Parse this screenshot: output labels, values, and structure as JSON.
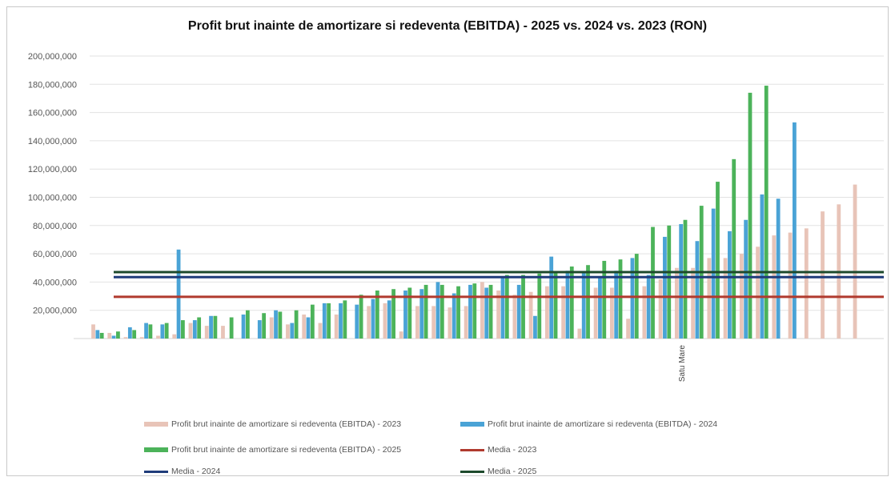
{
  "chart_data": {
    "type": "bar",
    "title": "Profit brut inainte de amortizare si redeventa (EBITDA) - 2025 vs. 2024 vs. 2023 (RON)",
    "xlabel": "",
    "ylabel": "",
    "ylim": [
      0,
      200000000
    ],
    "yticks": [
      "200,000,000",
      "180,000,000",
      "160,000,000",
      "140,000,000",
      "120,000,000",
      "100,000,000",
      "80,000,000",
      "60,000,000",
      "40,000,000",
      "20,000,000"
    ],
    "grid": true,
    "legend_position": "bottom",
    "categories": [
      "",
      "",
      "",
      "",
      "",
      "",
      "",
      "",
      "",
      "",
      "",
      "",
      "",
      "",
      "",
      "",
      "",
      "",
      "",
      "",
      "",
      "",
      "",
      "",
      "",
      "",
      "",
      "",
      "",
      "",
      "",
      "",
      "",
      "",
      "",
      "",
      "Satu Mare",
      "",
      "",
      "",
      "",
      "",
      "",
      "",
      "",
      "",
      "",
      "",
      ""
    ],
    "series": [
      {
        "name": "Profit brut inainte de amortizare si redeventa (EBITDA) - 2023",
        "kind": "bar",
        "color": "#e8c4b8",
        "values": [
          10000000,
          4000000,
          1000000,
          1000000,
          2000000,
          3000000,
          11000000,
          9000000,
          9000000,
          0,
          0,
          15000000,
          10000000,
          17000000,
          11000000,
          17000000,
          0,
          23000000,
          25000000,
          5000000,
          23000000,
          23000000,
          22000000,
          23000000,
          40000000,
          34000000,
          31000000,
          33000000,
          37000000,
          37000000,
          7000000,
          36000000,
          36000000,
          14000000,
          37000000,
          42000000,
          50000000,
          50000000,
          57000000,
          57000000,
          60000000,
          65000000,
          73000000,
          75000000,
          78000000,
          90000000,
          95000000,
          109000000,
          0
        ]
      },
      {
        "name": "Profit brut inainte de amortizare si redeventa (EBITDA) - 2024",
        "kind": "bar",
        "color": "#4aa3d6",
        "values": [
          6000000,
          2000000,
          8000000,
          11000000,
          10000000,
          63000000,
          13000000,
          16000000,
          0,
          17000000,
          13000000,
          20000000,
          11000000,
          15000000,
          25000000,
          25000000,
          24000000,
          28000000,
          27000000,
          34000000,
          35000000,
          40000000,
          32000000,
          38000000,
          36000000,
          44000000,
          38000000,
          16000000,
          58000000,
          48000000,
          47000000,
          43000000,
          48000000,
          57000000,
          45000000,
          72000000,
          81000000,
          69000000,
          92000000,
          76000000,
          84000000,
          102000000,
          99000000,
          153000000,
          0,
          0,
          0,
          0,
          0
        ]
      },
      {
        "name": "Profit brut inainte de amortizare si redeventa (EBITDA) - 2025",
        "kind": "bar",
        "color": "#4cb35a",
        "values": [
          4000000,
          5000000,
          6000000,
          10000000,
          11000000,
          13000000,
          15000000,
          16000000,
          15000000,
          20000000,
          18000000,
          19000000,
          20000000,
          24000000,
          25000000,
          27000000,
          31000000,
          34000000,
          35000000,
          36000000,
          38000000,
          38000000,
          37000000,
          39000000,
          38000000,
          45000000,
          45000000,
          46000000,
          47000000,
          51000000,
          52000000,
          55000000,
          56000000,
          60000000,
          79000000,
          80000000,
          84000000,
          94000000,
          111000000,
          127000000,
          174000000,
          179000000,
          0,
          0,
          0,
          0,
          0,
          0,
          0
        ]
      },
      {
        "name": "Media - 2023",
        "kind": "line",
        "color": "#b03a2e",
        "value": 29500000
      },
      {
        "name": "Media - 2024",
        "kind": "line",
        "color": "#1f3c7a",
        "value": 43500000
      },
      {
        "name": "Media - 2025",
        "kind": "line",
        "color": "#1d4a2c",
        "value": 47000000
      }
    ]
  }
}
